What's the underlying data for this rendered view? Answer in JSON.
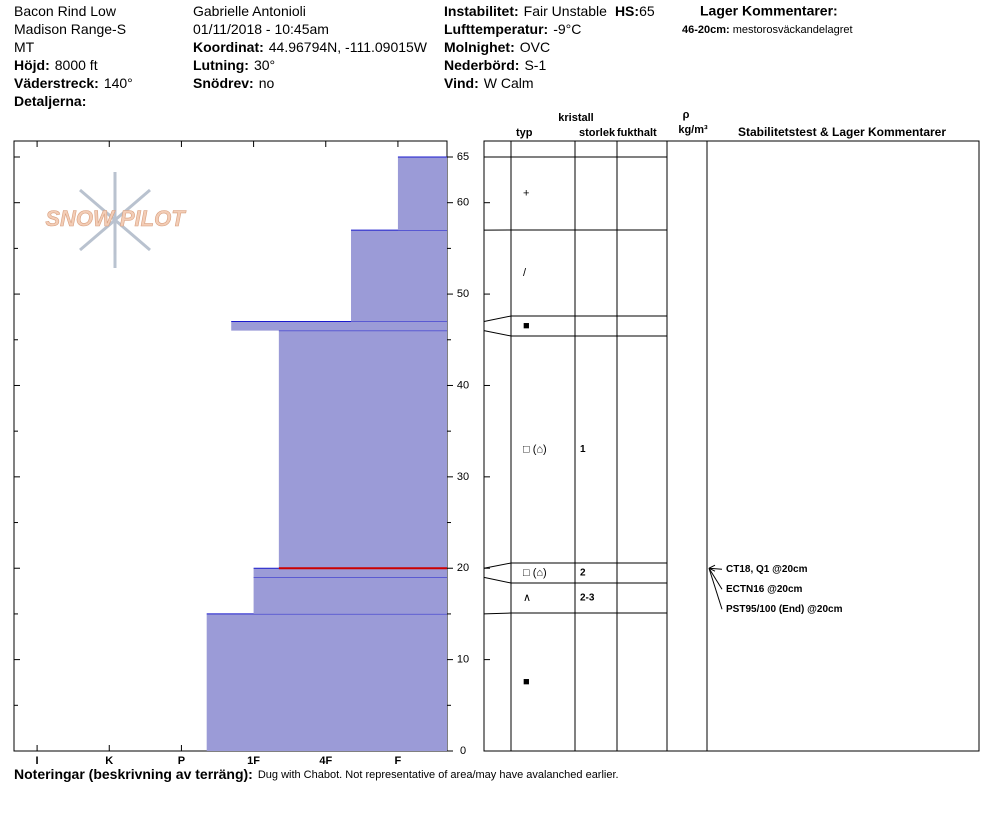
{
  "header": {
    "columns": [
      [
        {
          "value": "Bacon Rind Low"
        },
        {
          "value": "Madison Range-S"
        },
        {
          "value": "MT"
        },
        {
          "label": "Höjd:",
          "value": "8000 ft"
        },
        {
          "label": "Väderstreck:",
          "value": "140°"
        },
        {
          "label": "Detaljerna:"
        }
      ],
      [
        {
          "value": "Gabrielle Antonioli"
        },
        {
          "value": "01/11/2018 - 10:45am"
        },
        {
          "label": "Koordinat:",
          "value": "44.96794N, -111.09015W"
        },
        {
          "label": "Lutning:",
          "value": "30°"
        },
        {
          "label": "Snödrev:",
          "value": "no"
        }
      ],
      [
        {
          "label": "Instabilitet:",
          "value": "Fair Unstable",
          "label2": "HS:",
          "value2": 65
        },
        {
          "label": "Lufttemperatur:",
          "value": "-9°C"
        },
        {
          "label": "Molnighet:",
          "value": "OVC"
        },
        {
          "label": "Nederbörd:",
          "value": "S-1"
        },
        {
          "label": "Vind:",
          "value": "W Calm"
        }
      ]
    ],
    "comments": {
      "title": "Lager Kommentarer:",
      "items": [
        {
          "label": "46-20cm:",
          "value": "mestorosväckandelagret"
        }
      ]
    }
  },
  "logo": "SNOW PILOT",
  "profile": {
    "ylim": [
      0,
      65
    ],
    "yticks": [
      0,
      10,
      20,
      30,
      40,
      50,
      60,
      65
    ],
    "yminor": [
      5,
      15,
      25,
      35,
      45,
      55
    ],
    "xlim": [
      6.32,
      0.32
    ],
    "xticks": [
      {
        "value": 6,
        "label": "I"
      },
      {
        "value": 5,
        "label": "K"
      },
      {
        "value": 4,
        "label": "P"
      },
      {
        "value": 3,
        "label": "1F"
      },
      {
        "value": 2,
        "label": "4F"
      },
      {
        "value": 1,
        "label": "F"
      }
    ],
    "color": "#9b9bd7",
    "edge_color": "#1a1acc",
    "layers": [
      {
        "bottom": 0,
        "top": 15,
        "hardness": 3.65,
        "grain": "■"
      },
      {
        "bottom": 15,
        "top": 19,
        "hardness": 3,
        "grain": "∧",
        "size": "2-3"
      },
      {
        "bottom": 19,
        "top": 20,
        "hardness": 3,
        "grain": "□ (⌂)",
        "size": "2"
      },
      {
        "bottom": 20,
        "top": 46,
        "hardness": 2.65,
        "grain": "□ (⌂)",
        "size": "1"
      },
      {
        "bottom": 46,
        "top": 47,
        "hardness": 3.31,
        "grain": "■"
      },
      {
        "bottom": 47,
        "top": 57,
        "hardness": 1.65,
        "grain": "/"
      },
      {
        "bottom": 57,
        "top": 65,
        "hardness": 1,
        "grain": "+"
      }
    ],
    "headers": {
      "crystal": "kristall",
      "type": "typ",
      "size": "storlek",
      "moisture": "fukthalt",
      "density_symbol": "ρ",
      "density_unit": "kg/m³",
      "stability": "Stabilitetstest & Lager Kommentarer"
    },
    "tests": [
      {
        "text": "CT18, Q1 @20cm",
        "depth": 20
      },
      {
        "text": "ECTN16 @20cm",
        "depth": 20
      },
      {
        "text": "PST95/100 (End) @20cm",
        "depth": 20
      }
    ],
    "concern_color": "#cc0000"
  },
  "footer": {
    "label": "Noteringar (beskrivning av terräng):",
    "value": "Dug with Chabot.  Not representative of area/may have avalanched earlier."
  }
}
